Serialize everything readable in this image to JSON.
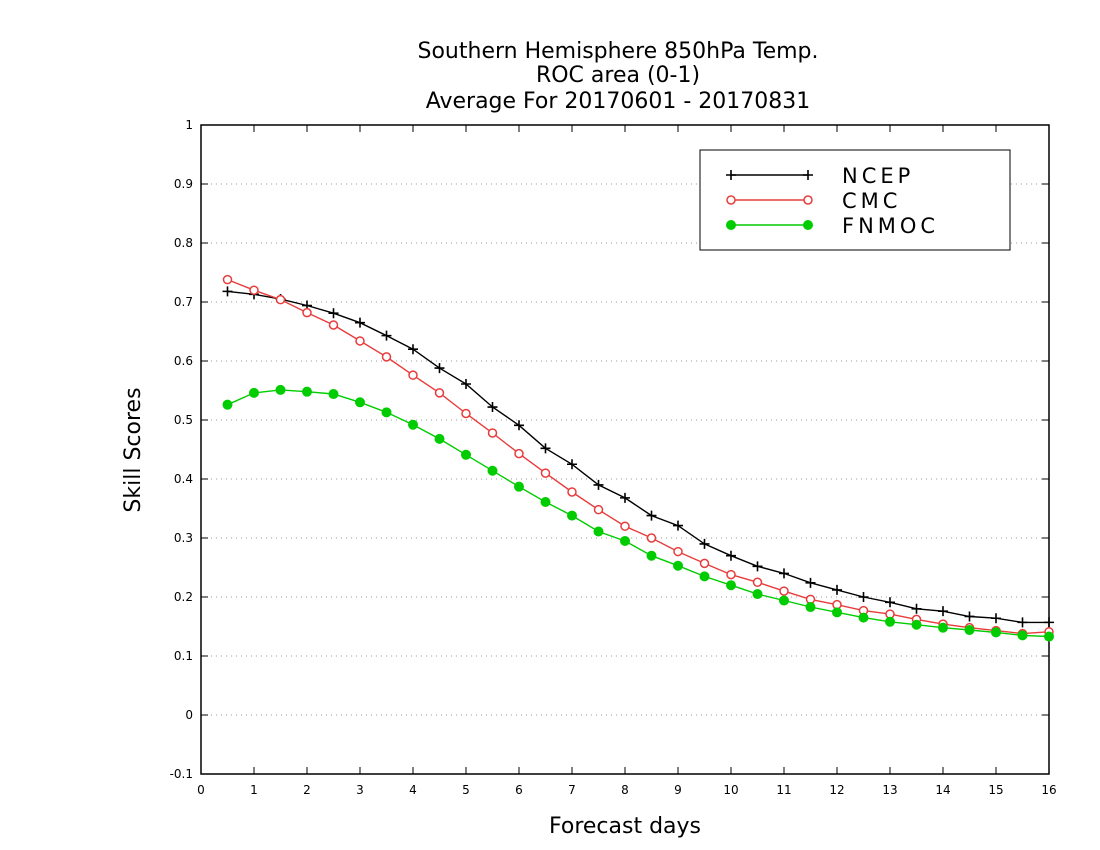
{
  "chart_data": {
    "type": "line",
    "title": [
      "Southern Hemisphere 850hPa Temp.",
      "ROC area (0-1)",
      "Average For 20170601 - 20170831"
    ],
    "xlabel": "Forecast days",
    "ylabel": "Skill Scores",
    "xlim": [
      0,
      16
    ],
    "ylim": [
      -0.1,
      1
    ],
    "x_ticks": [
      "0",
      "1",
      "2",
      "3",
      "4",
      "5",
      "6",
      "7",
      "8",
      "9",
      "10",
      "11",
      "12",
      "13",
      "14",
      "15",
      "16"
    ],
    "y_ticks": [
      "-0.1",
      "0",
      "0.1",
      "0.2",
      "0.3",
      "0.4",
      "0.5",
      "0.6",
      "0.7",
      "0.8",
      "0.9",
      "1"
    ],
    "grid": "horizontal dotted",
    "legend_position": "top-right",
    "x": [
      0.5,
      1,
      1.5,
      2,
      2.5,
      3,
      3.5,
      4,
      4.5,
      5,
      5.5,
      6,
      6.5,
      7,
      7.5,
      8,
      8.5,
      9,
      9.5,
      10,
      10.5,
      11,
      11.5,
      12,
      12.5,
      13,
      13.5,
      14,
      14.5,
      15,
      15.5,
      16
    ],
    "series": [
      {
        "name": "NCEP",
        "color": "#000000",
        "marker": "plus",
        "values": [
          0.718,
          0.713,
          0.705,
          0.694,
          0.681,
          0.665,
          0.643,
          0.62,
          0.588,
          0.561,
          0.522,
          0.491,
          0.452,
          0.425,
          0.39,
          0.368,
          0.338,
          0.321,
          0.29,
          0.27,
          0.252,
          0.24,
          0.224,
          0.212,
          0.2,
          0.191,
          0.18,
          0.176,
          0.167,
          0.164,
          0.157,
          0.157
        ]
      },
      {
        "name": "CMC",
        "color": "#e83c3c",
        "marker": "open-circle",
        "values": [
          0.738,
          0.72,
          0.704,
          0.682,
          0.661,
          0.634,
          0.607,
          0.576,
          0.546,
          0.511,
          0.478,
          0.443,
          0.41,
          0.378,
          0.348,
          0.32,
          0.3,
          0.277,
          0.257,
          0.238,
          0.225,
          0.21,
          0.196,
          0.187,
          0.177,
          0.171,
          0.162,
          0.154,
          0.148,
          0.143,
          0.138,
          0.141
        ]
      },
      {
        "name": "FNMOC",
        "color": "#00cc00",
        "marker": "filled-circle",
        "values": [
          0.526,
          0.546,
          0.551,
          0.548,
          0.544,
          0.53,
          0.513,
          0.492,
          0.468,
          0.441,
          0.414,
          0.387,
          0.361,
          0.338,
          0.311,
          0.295,
          0.27,
          0.253,
          0.235,
          0.22,
          0.205,
          0.194,
          0.183,
          0.174,
          0.165,
          0.158,
          0.153,
          0.148,
          0.144,
          0.14,
          0.135,
          0.133
        ]
      }
    ]
  }
}
